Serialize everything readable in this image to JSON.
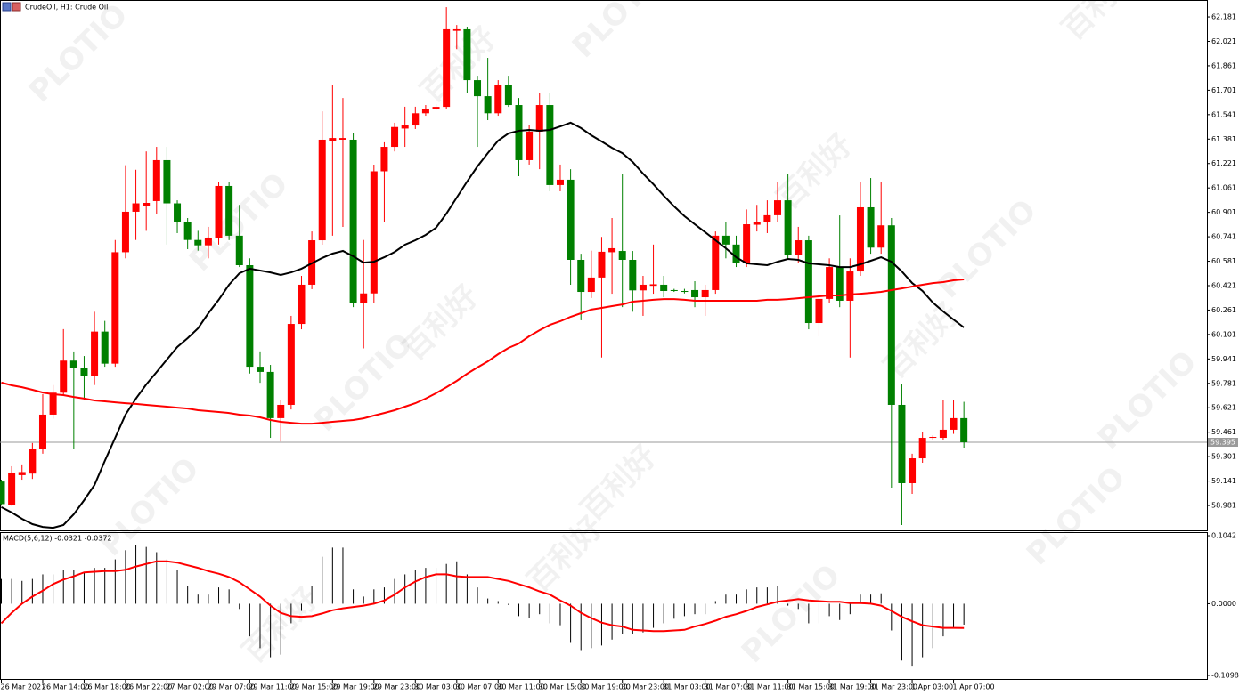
{
  "watermark": {
    "brand": "PLOTIO",
    "cn": "百利好"
  },
  "chart_data": [
    {
      "type": "candlestick",
      "title": "CrudeOil, H1:  Crude Oil",
      "categories": [
        "26 Mar 2021",
        null,
        null,
        null,
        "26 Mar 14:00",
        null,
        null,
        null,
        "26 Mar 18:00",
        null,
        null,
        null,
        "26 Mar 22:00",
        null,
        null,
        null,
        "27 Mar 02:00",
        null,
        null,
        null,
        "29 Mar 07:00",
        null,
        null,
        null,
        "29 Mar 11:00",
        null,
        null,
        null,
        "29 Mar 15:00",
        null,
        null,
        null,
        "29 Mar 19:00",
        null,
        null,
        null,
        "29 Mar 23:00",
        null,
        null,
        null,
        "30 Mar 03:00",
        null,
        null,
        null,
        "30 Mar 07:00",
        null,
        null,
        null,
        "30 Mar 11:00",
        null,
        null,
        null,
        "30 Mar 15:00",
        null,
        null,
        null,
        "30 Mar 19:00",
        null,
        null,
        null,
        "30 Mar 23:00",
        null,
        null,
        null,
        "31 Mar 03:00",
        null,
        null,
        null,
        "31 Mar 07:00",
        null,
        null,
        null,
        "31 Mar 11:00",
        null,
        null,
        null,
        "31 Mar 15:00",
        null,
        null,
        null,
        "31 Mar 19:00",
        null,
        null,
        null,
        "31 Mar 23:00",
        null,
        null,
        null,
        "1 Apr 03:00",
        null,
        null,
        null,
        "1 Apr 07:00",
        null
      ],
      "open": [
        59.138,
        58.987,
        59.18,
        59.19,
        59.35,
        59.576,
        59.72,
        59.93,
        59.88,
        59.83,
        60.12,
        59.91,
        60.64,
        60.905,
        60.94,
        60.975,
        61.243,
        60.96,
        60.835,
        60.72,
        60.685,
        60.73,
        61.074,
        60.748,
        60.555,
        59.89,
        59.856,
        59.553,
        59.64,
        60.17,
        60.427,
        60.718,
        61.37,
        61.377,
        61.377,
        60.31,
        60.37,
        61.17,
        61.33,
        61.45,
        61.47,
        61.55,
        61.58,
        61.592,
        62.09,
        62.1,
        61.767,
        61.662,
        61.55,
        61.738,
        61.604,
        61.243,
        61.43,
        61.604,
        61.08,
        61.115,
        60.59,
        60.38,
        60.474,
        60.64,
        60.648,
        60.59,
        60.39,
        60.42,
        60.427,
        60.392,
        60.386,
        60.392,
        60.345,
        60.392,
        60.748,
        60.69,
        60.572,
        60.82,
        60.835,
        60.882,
        60.98,
        60.62,
        60.718,
        60.176,
        60.334,
        60.543,
        60.322,
        60.514,
        60.934,
        60.67,
        60.816,
        59.64,
        59.127,
        59.29,
        59.424,
        59.424,
        59.477,
        59.553
      ],
      "high": [
        59.15,
        59.238,
        59.25,
        59.39,
        59.71,
        59.77,
        60.136,
        59.99,
        59.96,
        60.25,
        60.19,
        60.72,
        61.21,
        61.18,
        61.3,
        61.33,
        61.33,
        60.98,
        60.864,
        60.78,
        60.806,
        61.097,
        61.097,
        60.95,
        60.6,
        59.99,
        59.902,
        59.67,
        60.223,
        60.485,
        60.776,
        61.563,
        61.738,
        61.65,
        61.418,
        60.72,
        61.214,
        61.36,
        61.488,
        61.593,
        61.593,
        61.604,
        61.61,
        62.245,
        62.128,
        62.117,
        61.796,
        61.913,
        61.767,
        61.796,
        61.65,
        61.476,
        61.68,
        61.68,
        61.214,
        61.184,
        60.63,
        60.65,
        60.74,
        60.864,
        61.155,
        60.648,
        60.485,
        60.69,
        60.485,
        60.4,
        60.4,
        60.45,
        60.427,
        60.776,
        60.835,
        60.748,
        60.92,
        60.95,
        60.98,
        61.097,
        61.155,
        60.806,
        60.748,
        60.368,
        60.6,
        60.881,
        60.6,
        61.097,
        61.126,
        61.097,
        60.864,
        59.774,
        59.32,
        59.465,
        59.44,
        59.669,
        59.669,
        59.66
      ],
      "low": [
        58.98,
        58.98,
        59.15,
        59.155,
        59.32,
        59.55,
        59.7,
        59.35,
        59.67,
        59.77,
        59.89,
        59.89,
        60.6,
        60.72,
        60.78,
        60.89,
        60.69,
        60.765,
        60.66,
        60.65,
        60.6,
        60.69,
        60.719,
        60.543,
        59.845,
        59.785,
        59.424,
        59.4,
        59.61,
        60.135,
        60.398,
        60.689,
        60.748,
        60.806,
        60.28,
        60.01,
        60.31,
        60.835,
        61.3,
        61.33,
        61.447,
        61.534,
        61.57,
        61.575,
        61.97,
        61.68,
        61.33,
        61.505,
        61.534,
        61.592,
        61.138,
        61.214,
        61.184,
        61.039,
        61.039,
        60.427,
        60.194,
        60.34,
        59.95,
        60.368,
        60.28,
        60.25,
        60.223,
        60.368,
        60.345,
        60.38,
        60.37,
        60.28,
        60.223,
        60.368,
        60.6,
        60.543,
        60.543,
        60.776,
        60.765,
        60.835,
        60.59,
        60.572,
        60.135,
        60.089,
        60.31,
        60.28,
        59.95,
        60.485,
        60.63,
        60.63,
        59.098,
        58.853,
        59.057,
        59.261,
        59.41,
        59.407,
        59.45,
        59.36
      ],
      "close": [
        58.99,
        59.197,
        59.2,
        59.35,
        59.576,
        59.72,
        59.93,
        59.88,
        59.83,
        60.12,
        59.91,
        60.64,
        60.905,
        60.96,
        60.963,
        61.243,
        60.96,
        60.835,
        60.72,
        60.685,
        60.73,
        61.074,
        60.748,
        60.555,
        59.89,
        59.856,
        59.553,
        59.64,
        60.17,
        60.427,
        60.718,
        61.377,
        61.388,
        61.388,
        60.31,
        60.37,
        61.17,
        61.33,
        61.46,
        61.47,
        61.55,
        61.58,
        61.592,
        62.1,
        62.1,
        61.767,
        61.662,
        61.55,
        61.738,
        61.604,
        61.243,
        61.43,
        61.604,
        61.08,
        61.115,
        60.59,
        60.38,
        60.474,
        60.643,
        60.666,
        60.59,
        60.39,
        60.427,
        60.43,
        60.386,
        60.386,
        60.38,
        60.345,
        60.392,
        60.748,
        60.69,
        60.572,
        60.823,
        60.835,
        60.882,
        60.98,
        60.62,
        60.718,
        60.176,
        60.334,
        60.543,
        60.322,
        60.514,
        60.934,
        60.67,
        60.816,
        59.64,
        59.127,
        59.29,
        59.424,
        59.43,
        59.477,
        59.553,
        59.395
      ],
      "up_color": "#ff0000",
      "down_color": "#008000",
      "series": [
        {
          "color": "#000000",
          "values": [
            58.97,
            58.935,
            58.894,
            58.859,
            58.841,
            58.835,
            58.853,
            58.923,
            59.016,
            59.115,
            59.273,
            59.424,
            59.576,
            59.681,
            59.774,
            59.855,
            59.937,
            60.019,
            60.077,
            60.141,
            60.24,
            60.328,
            60.427,
            60.502,
            60.532,
            60.52,
            60.508,
            60.491,
            60.508,
            60.532,
            60.567,
            60.602,
            60.631,
            60.648,
            60.613,
            60.572,
            60.578,
            60.607,
            60.642,
            60.689,
            60.718,
            60.753,
            60.8,
            60.893,
            60.998,
            61.103,
            61.202,
            61.289,
            61.371,
            61.418,
            61.435,
            61.441,
            61.435,
            61.441,
            61.464,
            61.488,
            61.453,
            61.406,
            61.365,
            61.324,
            61.289,
            61.231,
            61.155,
            61.085,
            61.01,
            60.94,
            60.876,
            60.823,
            60.771,
            60.718,
            60.666,
            60.607,
            60.567,
            60.561,
            60.555,
            60.578,
            60.596,
            60.59,
            60.567,
            60.561,
            60.555,
            60.543,
            60.543,
            60.561,
            60.584,
            60.607,
            60.578,
            60.514,
            60.438,
            60.386,
            60.31,
            60.252,
            60.199,
            60.147
          ]
        },
        {
          "color": "#ff0000",
          "values": [
            59.786,
            59.768,
            59.756,
            59.739,
            59.721,
            59.71,
            59.704,
            59.692,
            59.681,
            59.669,
            59.663,
            59.657,
            59.651,
            59.646,
            59.64,
            59.634,
            59.628,
            59.622,
            59.616,
            59.605,
            59.599,
            59.593,
            59.587,
            59.576,
            59.57,
            59.558,
            59.541,
            59.529,
            59.523,
            59.517,
            59.517,
            59.523,
            59.529,
            59.535,
            59.541,
            59.552,
            59.57,
            59.587,
            59.605,
            59.628,
            59.651,
            59.681,
            59.716,
            59.756,
            59.797,
            59.844,
            59.885,
            59.925,
            59.972,
            60.013,
            60.042,
            60.089,
            60.129,
            60.164,
            60.188,
            60.217,
            60.24,
            60.264,
            60.275,
            60.287,
            60.298,
            60.316,
            60.322,
            60.328,
            60.333,
            60.333,
            60.328,
            60.322,
            60.322,
            60.322,
            60.322,
            60.322,
            60.322,
            60.322,
            60.328,
            60.328,
            60.333,
            60.339,
            60.345,
            60.351,
            60.357,
            60.357,
            60.363,
            60.368,
            60.374,
            60.38,
            60.392,
            60.403,
            60.415,
            60.427,
            60.438,
            60.444,
            60.456,
            60.462
          ]
        }
      ],
      "last_price": 59.395,
      "ylim": [
        58.818,
        62.292
      ],
      "yticks": [
        62.181,
        62.021,
        61.861,
        61.701,
        61.541,
        61.381,
        61.221,
        61.061,
        60.901,
        60.741,
        60.581,
        60.421,
        60.261,
        60.101,
        59.941,
        59.781,
        59.621,
        59.461,
        59.301,
        59.141,
        58.981
      ]
    },
    {
      "type": "macd",
      "title": "MACD(5,6,12) -0.0321 -0.0372",
      "histogram": {
        "color": "#000000",
        "values": [
          0.038,
          0.038,
          0.035,
          0.038,
          0.045,
          0.045,
          0.052,
          0.052,
          0.049,
          0.055,
          0.055,
          0.068,
          0.082,
          0.09,
          0.087,
          0.079,
          0.068,
          0.052,
          0.027,
          0.014,
          0.014,
          0.025,
          0.022,
          -0.008,
          -0.05,
          -0.068,
          -0.082,
          -0.078,
          -0.03,
          -0.011,
          0.027,
          0.072,
          0.086,
          0.086,
          0.022,
          0.011,
          0.022,
          0.025,
          0.038,
          0.045,
          0.052,
          0.055,
          0.055,
          0.061,
          0.065,
          0.045,
          0.025,
          0.008,
          0.004,
          -0.002,
          -0.019,
          -0.022,
          -0.016,
          -0.03,
          -0.033,
          -0.06,
          -0.071,
          -0.068,
          -0.064,
          -0.055,
          -0.046,
          -0.046,
          -0.044,
          -0.037,
          -0.03,
          -0.023,
          -0.019,
          -0.016,
          -0.016,
          0.004,
          0.014,
          0.014,
          0.022,
          0.025,
          0.025,
          0.027,
          -0.003,
          -0.008,
          -0.03,
          -0.03,
          -0.019,
          -0.025,
          -0.016,
          0.014,
          0.014,
          0.016,
          -0.041,
          -0.087,
          -0.095,
          -0.082,
          -0.068,
          -0.05,
          -0.037,
          -0.0321
        ]
      },
      "signal": {
        "color": "#ff0000",
        "values": [
          -0.03,
          -0.014,
          0.0,
          0.011,
          0.02,
          0.03,
          0.037,
          0.042,
          0.048,
          0.049,
          0.05,
          0.05,
          0.052,
          0.057,
          0.061,
          0.065,
          0.065,
          0.063,
          0.059,
          0.055,
          0.05,
          0.046,
          0.041,
          0.033,
          0.022,
          0.011,
          -0.003,
          -0.014,
          -0.019,
          -0.02,
          -0.019,
          -0.015,
          -0.01,
          -0.007,
          -0.005,
          -0.003,
          0.0,
          0.005,
          0.014,
          0.025,
          0.034,
          0.041,
          0.045,
          0.045,
          0.042,
          0.041,
          0.041,
          0.041,
          0.038,
          0.035,
          0.03,
          0.025,
          0.019,
          0.014,
          0.005,
          -0.003,
          -0.014,
          -0.022,
          -0.029,
          -0.033,
          -0.035,
          -0.04,
          -0.041,
          -0.042,
          -0.042,
          -0.041,
          -0.04,
          -0.035,
          -0.031,
          -0.026,
          -0.02,
          -0.016,
          -0.011,
          -0.005,
          -0.001,
          0.003,
          0.005,
          0.007,
          0.005,
          0.004,
          0.003,
          0.003,
          0.001,
          0.001,
          0.0,
          -0.003,
          -0.011,
          -0.02,
          -0.027,
          -0.033,
          -0.035,
          -0.037,
          -0.037,
          -0.0372
        ]
      },
      "ylim": [
        -0.1153,
        0.1097
      ],
      "yticks": [
        0.1042,
        {
          "value": 0,
          "label": "0.0000"
        },
        -0.1098
      ]
    }
  ]
}
